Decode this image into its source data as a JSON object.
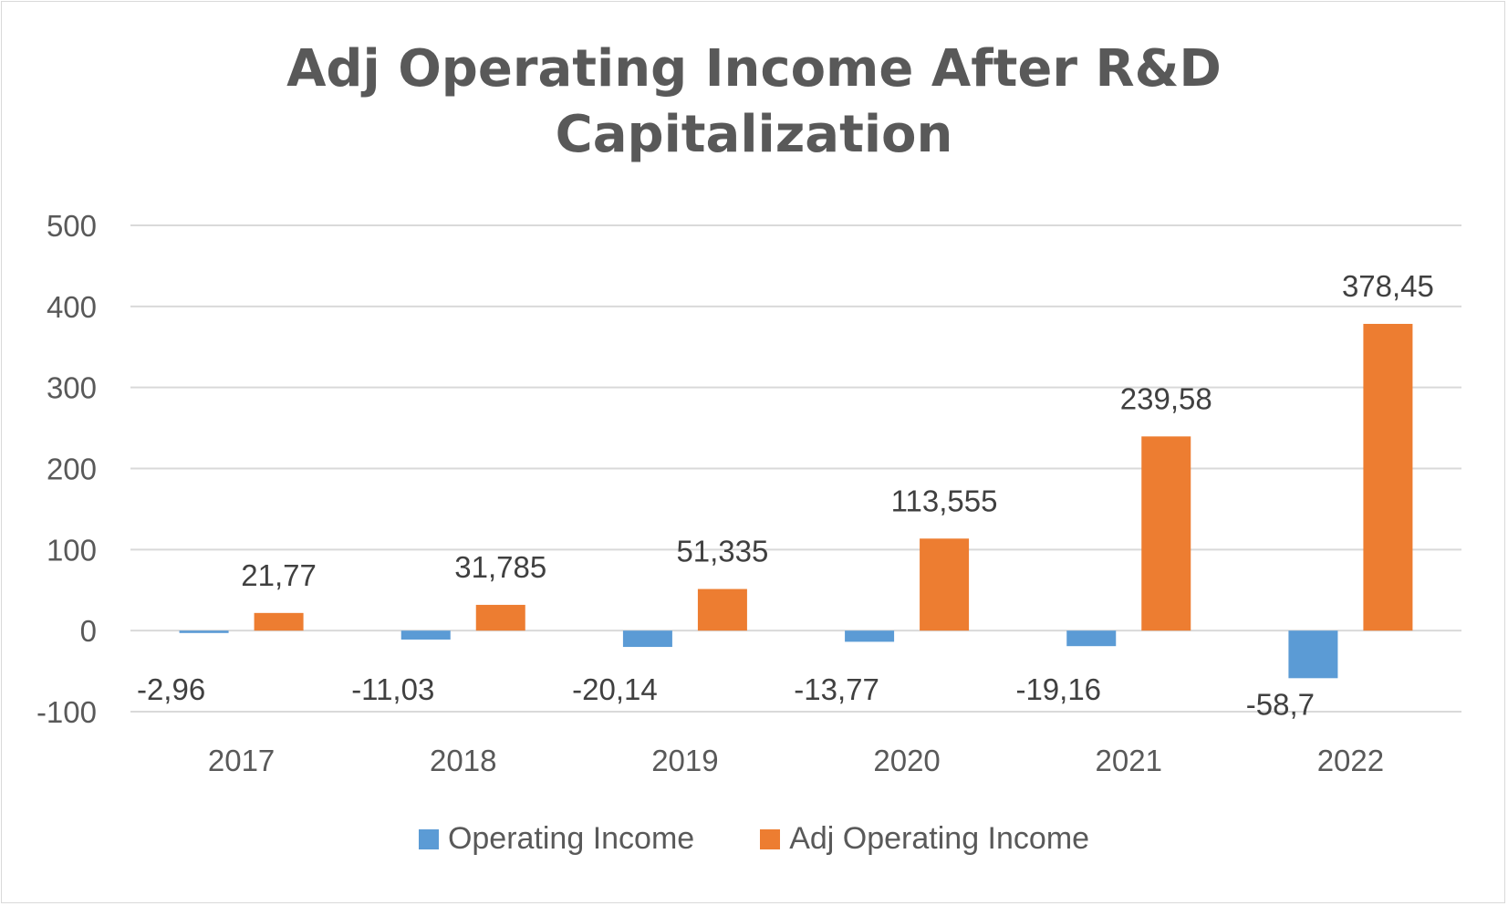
{
  "chart_data": {
    "type": "bar",
    "title_lines": [
      "Adj Operating Income After R&D",
      "Capitalization"
    ],
    "categories": [
      "2017",
      "2018",
      "2019",
      "2020",
      "2021",
      "2022"
    ],
    "series": [
      {
        "name": "Operating Income",
        "color": "#5b9bd5",
        "values": [
          -2.96,
          -11.03,
          -20.14,
          -13.77,
          -19.16,
          -58.7
        ],
        "labels": [
          "-2,96",
          "-11,03",
          "-20,14",
          "-13,77",
          "-19,16",
          "-58,7"
        ]
      },
      {
        "name": "Adj Operating Income",
        "color": "#ed7d31",
        "values": [
          21.77,
          31.785,
          51.335,
          113.555,
          239.58,
          378.45
        ],
        "labels": [
          "21,77",
          "31,785",
          "51,335",
          "113,555",
          "239,58",
          "378,45"
        ]
      }
    ],
    "yticks": [
      "500",
      "400",
      "300",
      "200",
      "100",
      "0",
      "-100"
    ],
    "ylim": [
      -100,
      500
    ],
    "grid": true,
    "legend_position": "bottom"
  }
}
